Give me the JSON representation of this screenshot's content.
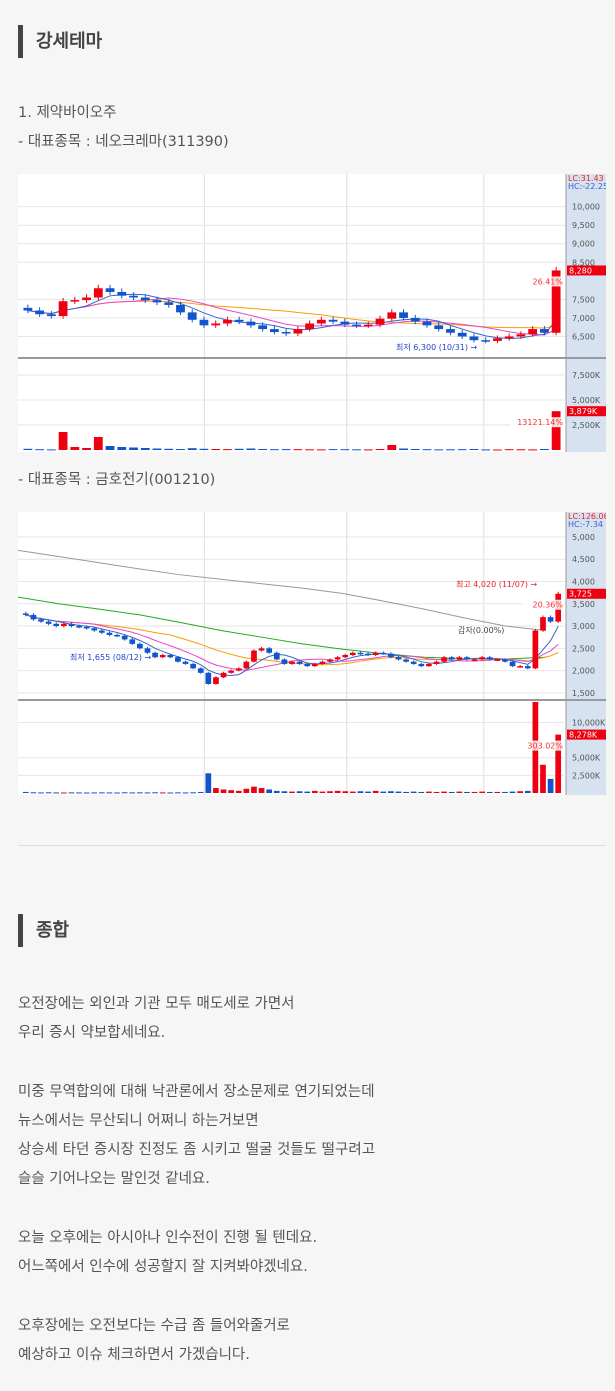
{
  "section1": {
    "heading": "강세테마",
    "theme": "1. 제약바이오주",
    "stock1_label": "- 대표종목 : 네오크레마(311390)",
    "stock2_label": "- 대표종목 : 금호전기(001210)"
  },
  "section2": {
    "heading": "종합",
    "paragraphs": [
      [
        "오전장에는 외인과 기관 모두 매도세로 가면서",
        "우리 증시 약보합세네요."
      ],
      [
        "미중 무역합의에 대해 낙관론에서 장소문제로 연기되었는데",
        "뉴스에서는 무산되니 어쩌니 하는거보면",
        "상승세 타던 증시장 진정도 좀 시키고 떨굴 것들도 떨구려고",
        "슬슬 기어나오는 말인것 같네요."
      ],
      [
        "오늘 오후에는 아시아나 인수전이 진행 될 텐데요.",
        "어느쪽에서 인수에 성공할지 잘 지켜봐야겠네요."
      ],
      [
        "오후장에는 오전보다는 수급 좀 들어와줄거로",
        "예상하고 이슈 체크하면서 가겠습니다."
      ]
    ]
  },
  "chart_data": [
    {
      "type": "candlestick",
      "stock": "네오크레마(311390)",
      "lc": "LC:31.43",
      "hc": "HC:-22.25",
      "price_ticks": [
        10000,
        9500,
        9000,
        8500,
        7500,
        7000,
        6500
      ],
      "price_ylim": [
        5920,
        10880
      ],
      "last_price": "8,280",
      "change": "26.41%",
      "low_note": "최저 6,300 (10/31)",
      "volume_ticks": [
        "7,500K",
        "5,000K",
        "2,500K"
      ],
      "volume_ylim": [
        0,
        9000
      ],
      "last_volume": "3,879K",
      "volume_note": "13121.14%",
      "closes": [
        7200,
        7100,
        7050,
        7450,
        7480,
        7550,
        7800,
        7700,
        7600,
        7550,
        7480,
        7420,
        7350,
        7150,
        6950,
        6800,
        6850,
        6950,
        6900,
        6800,
        6700,
        6620,
        6580,
        6700,
        6850,
        6950,
        6900,
        6820,
        6800,
        6820,
        6980,
        7150,
        7000,
        6900,
        6800,
        6700,
        6600,
        6500,
        6400,
        6380,
        6450,
        6500,
        6560,
        6700,
        6600,
        8280
      ],
      "volumes": [
        120,
        80,
        60,
        1800,
        300,
        200,
        1300,
        400,
        300,
        250,
        200,
        150,
        120,
        100,
        180,
        120,
        100,
        90,
        120,
        150,
        100,
        80,
        90,
        80,
        70,
        60,
        90,
        80,
        70,
        60,
        100,
        500,
        150,
        100,
        80,
        60,
        70,
        80,
        100,
        60,
        50,
        80,
        70,
        60,
        100,
        3879
      ]
    },
    {
      "type": "candlestick",
      "stock": "금호전기(001210)",
      "lc": "LC:126.06",
      "hc": "HC:-7.34",
      "price_ticks": [
        5000,
        4500,
        4000,
        3500,
        3000,
        2500,
        2000,
        1500
      ],
      "price_ylim": [
        1340,
        5560
      ],
      "last_price": "3,725",
      "change": "20.36%",
      "high_note": "최고 4,020 (11/07)",
      "low_note": "최저 1,655 (08/12)",
      "mark_note": "갑자(0.00%)",
      "volume_ticks": [
        "10,000K",
        "5,000K",
        "2,500K"
      ],
      "volume_ylim": [
        0,
        12900
      ],
      "last_volume": "8,278K",
      "volume_note": "303.02%",
      "closes": [
        3250,
        3150,
        3100,
        3050,
        3000,
        3050,
        3000,
        2980,
        2950,
        2900,
        2850,
        2800,
        2780,
        2700,
        2600,
        2500,
        2400,
        2300,
        2350,
        2300,
        2200,
        2150,
        2050,
        1950,
        1700,
        1850,
        1950,
        2000,
        2050,
        2200,
        2450,
        2500,
        2400,
        2250,
        2150,
        2200,
        2150,
        2100,
        2150,
        2200,
        2250,
        2300,
        2350,
        2400,
        2380,
        2350,
        2400,
        2380,
        2300,
        2250,
        2200,
        2150,
        2100,
        2150,
        2200,
        2300,
        2250,
        2300,
        2250,
        2250,
        2300,
        2250,
        2250,
        2200,
        2100,
        2100,
        2050,
        2900,
        3200,
        3100,
        3725
      ],
      "volumes": [
        150,
        100,
        80,
        100,
        80,
        70,
        90,
        80,
        70,
        80,
        90,
        80,
        70,
        100,
        80,
        90,
        80,
        100,
        80,
        70,
        90,
        80,
        100,
        150,
        2800,
        700,
        500,
        400,
        300,
        600,
        900,
        700,
        500,
        300,
        250,
        200,
        250,
        200,
        300,
        200,
        250,
        300,
        250,
        200,
        250,
        200,
        300,
        200,
        250,
        200,
        150,
        200,
        150,
        200,
        150,
        200,
        150,
        200,
        150,
        150,
        200,
        150,
        150,
        150,
        200,
        250,
        300,
        14000,
        4000,
        2000,
        8278
      ],
      "ma_long": [
        4700,
        4560,
        4420,
        4280,
        4150,
        4050,
        3950,
        3850,
        3730,
        3560,
        3380,
        3180,
        3000,
        2900
      ],
      "ma_mid": [
        3650,
        3500,
        3380,
        3250,
        3080,
        2900,
        2750,
        2600,
        2480,
        2380,
        2300,
        2270,
        2260,
        2300
      ]
    }
  ]
}
